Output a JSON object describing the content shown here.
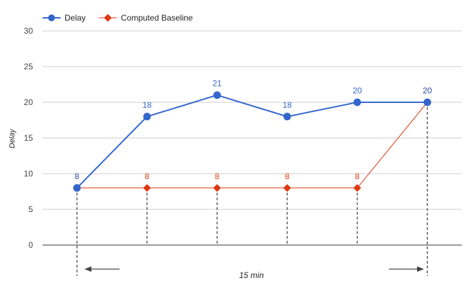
{
  "chart_data": {
    "type": "line",
    "ylabel": "Delay",
    "ylim": [
      0,
      30
    ],
    "y_ticks": [
      0,
      5,
      10,
      15,
      20,
      25,
      30
    ],
    "grid": true,
    "legend_position": "top-left",
    "x": [
      1,
      2,
      3,
      4,
      5,
      6
    ],
    "series": [
      {
        "name": "Delay",
        "color": "#3366cc",
        "values": [
          8,
          18,
          21,
          18,
          20,
          20
        ]
      },
      {
        "name": "Computed Baseline",
        "color": "#dc3912",
        "values": [
          8,
          8,
          8,
          8,
          8,
          20
        ]
      }
    ],
    "annotation": {
      "text": "15 min"
    }
  }
}
